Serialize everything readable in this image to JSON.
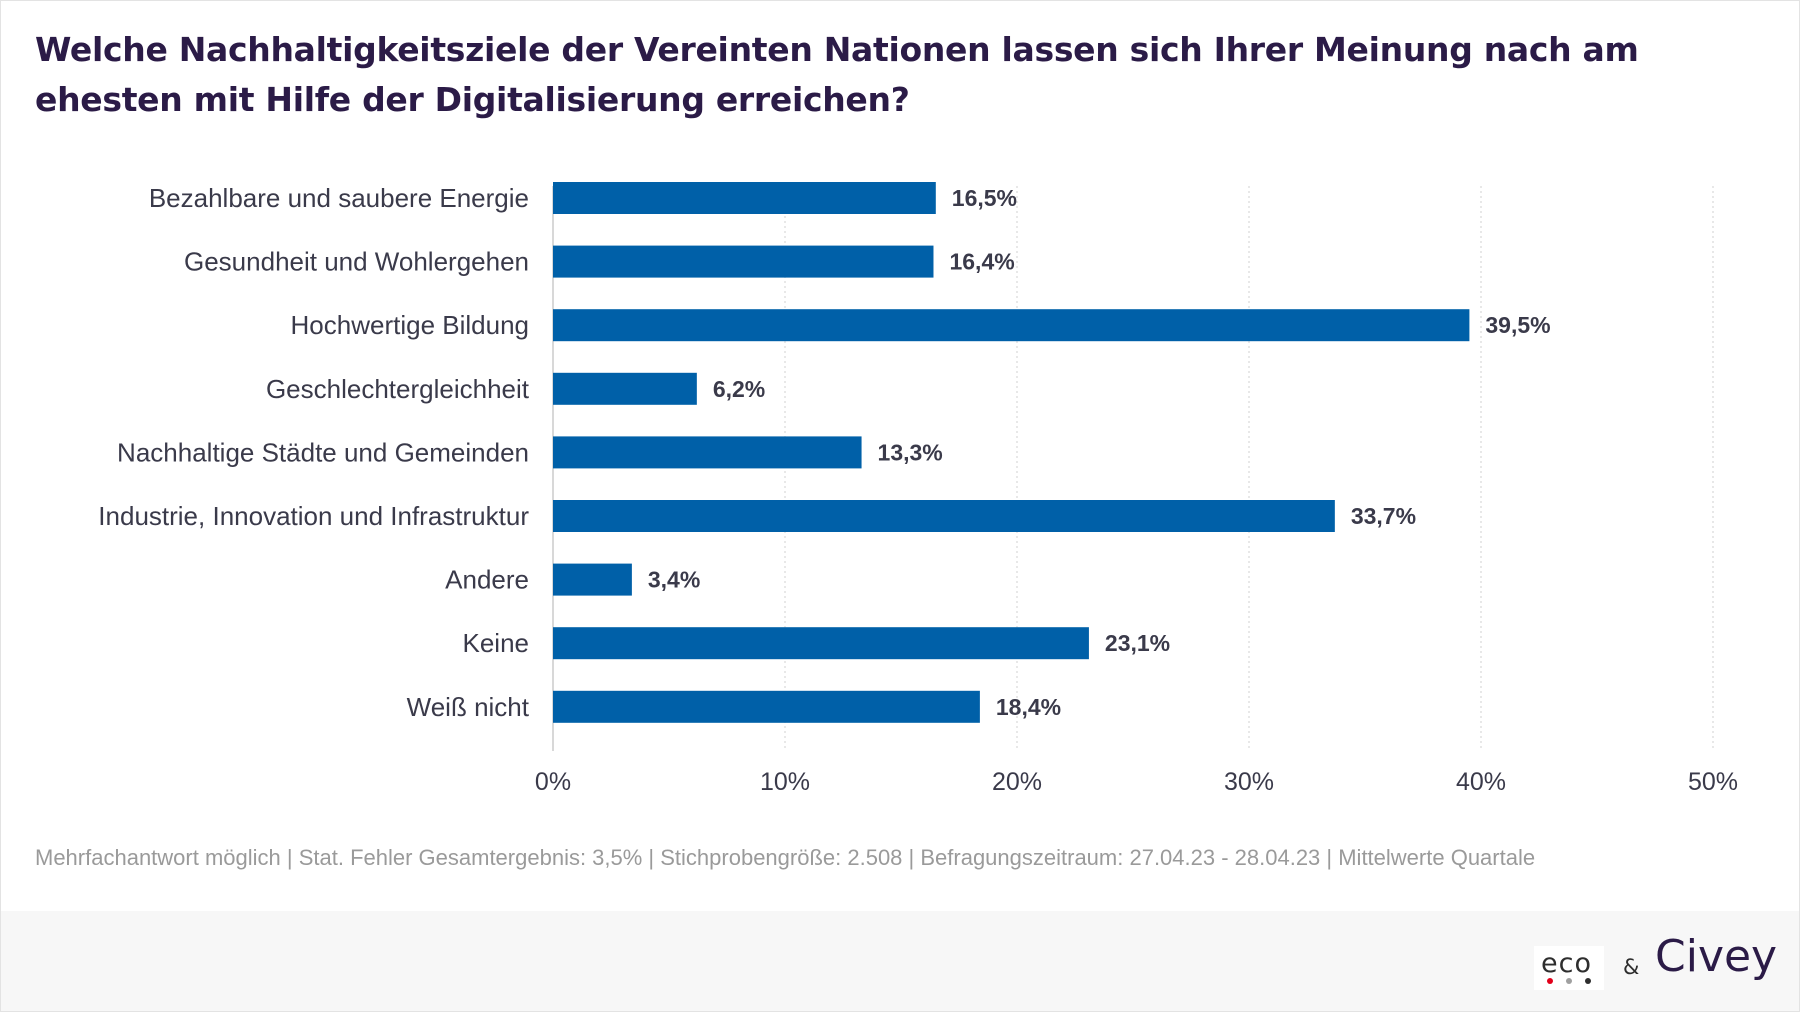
{
  "title": "Welche Nachhaltigkeitsziele der Vereinten Nationen lassen sich Ihrer Meinung nach am ehesten mit Hilfe der Digitalisierung erreichen?",
  "footnote": "Mehrfachantwort möglich | Stat. Fehler Gesamtergebnis: 3,5% | Stichprobengröße: 2.508 | Befragungszeitraum: 27.04.23 - 28.04.23 | Mittelwerte Quartale",
  "logos": {
    "eco": "eco",
    "ampersand": "&",
    "civey": "Civey"
  },
  "colors": {
    "bar": "#0060a8",
    "title": "#2b1b47",
    "label": "#3a3a4a",
    "eco_dot_red": "#e2001a",
    "eco_dot_grey": "#a0a0a0",
    "eco_dot_dark": "#2e2e2e"
  },
  "chart_data": {
    "type": "bar",
    "orientation": "horizontal",
    "categories": [
      "Bezahlbare und saubere Energie",
      "Gesundheit und Wohlergehen",
      "Hochwertige Bildung",
      "Geschlechtergleichheit",
      "Nachhaltige Städte und Gemeinden",
      "Industrie, Innovation und Infrastruktur",
      "Andere",
      "Keine",
      "Weiß nicht"
    ],
    "values": [
      16.5,
      16.4,
      39.5,
      6.2,
      13.3,
      33.7,
      3.4,
      23.1,
      18.4
    ],
    "value_labels": [
      "16,5%",
      "16,4%",
      "39,5%",
      "6,2%",
      "13,3%",
      "33,7%",
      "3,4%",
      "23,1%",
      "18,4%"
    ],
    "xlim": [
      0,
      50
    ],
    "xticks": [
      0,
      10,
      20,
      30,
      40,
      50
    ],
    "xtick_labels": [
      "0%",
      "10%",
      "20%",
      "30%",
      "40%",
      "50%"
    ],
    "grid": "vertical dotted",
    "legend": "none"
  }
}
